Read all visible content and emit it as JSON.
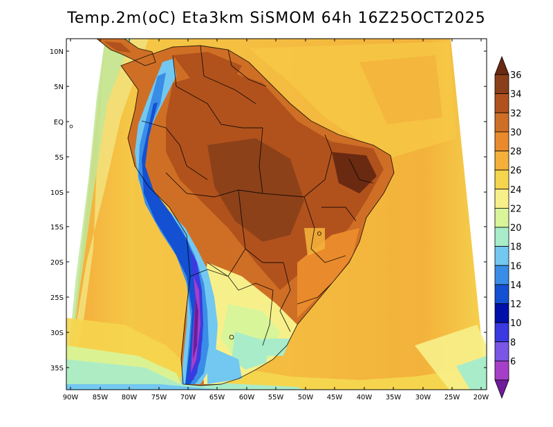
{
  "map": {
    "title": "Temp.2m(oC) Eta3km SiSMOM 64h 16Z25OCT2025",
    "lat_ticks": [
      "10N",
      "5N",
      "EQ",
      "5S",
      "10S",
      "15S",
      "20S",
      "25S",
      "30S",
      "35S"
    ],
    "lon_ticks": [
      "90W",
      "85W",
      "80W",
      "75W",
      "70W",
      "65W",
      "60W",
      "55W",
      "50W",
      "45W",
      "40W",
      "35W",
      "30W",
      "25W",
      "20W"
    ],
    "colorbar": {
      "labels": [
        "36",
        "34",
        "32",
        "30",
        "28",
        "26",
        "24",
        "22",
        "20",
        "18",
        "16",
        "14",
        "12",
        "10",
        "8",
        "6"
      ],
      "colors": [
        "#6a2a12",
        "#8a3f1a",
        "#b1521d",
        "#cf6f26",
        "#e98a2c",
        "#f4b03b",
        "#f6d54e",
        "#f7f08a",
        "#d8f59a",
        "#a9ecc9",
        "#72c8f0",
        "#3a8de6",
        "#1450d2",
        "#0010a8",
        "#3a3ae0",
        "#7a55e6",
        "#a63fc8",
        "#6e1c9c"
      ]
    }
  }
}
